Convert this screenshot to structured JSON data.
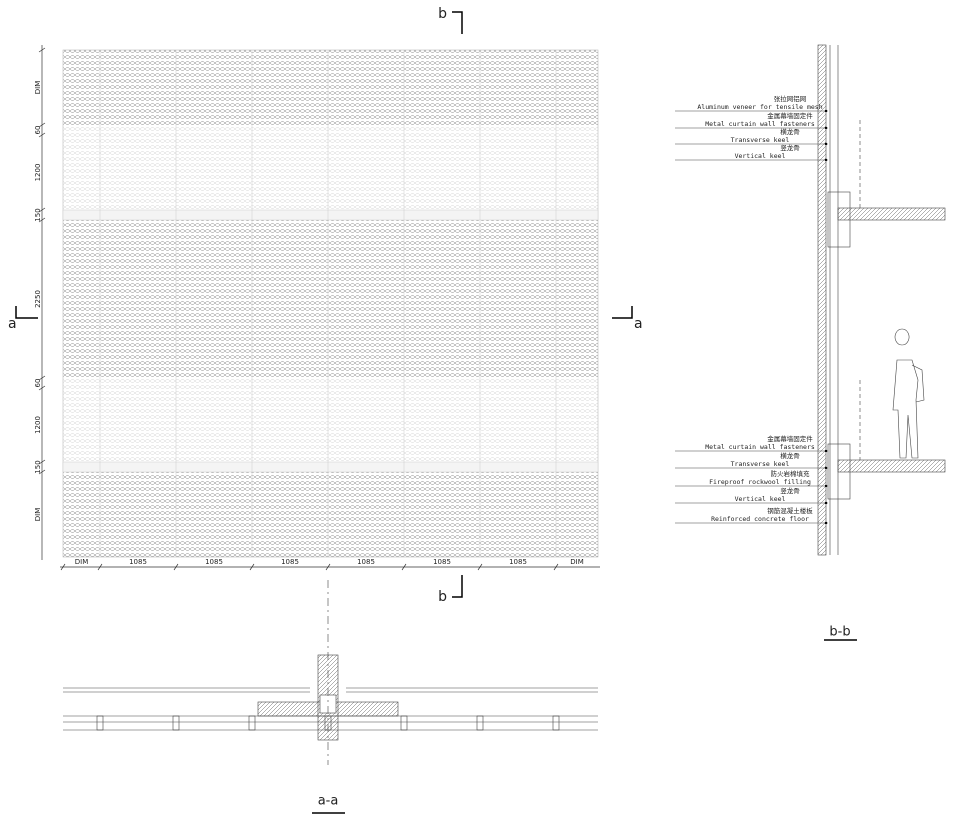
{
  "cut_marks": {
    "top": "b",
    "left": "a",
    "right": "a",
    "bottom": "b"
  },
  "vertical_dimensions": [
    "DIM",
    "60",
    "1200",
    "150",
    "2250",
    "60",
    "1200",
    "150",
    "DIM"
  ],
  "horizontal_dimensions": [
    "DIM",
    "1085",
    "1085",
    "1085",
    "1085",
    "1085",
    "1085",
    "DIM"
  ],
  "section_titles": {
    "plan": "a-a",
    "section": "b-b"
  },
  "annotations_upper": [
    {
      "zh": "张拉网铝网",
      "en": "Aluminum veneer for tensile mesh"
    },
    {
      "zh": "金属幕墙固定件",
      "en": "Metal curtain wall fasteners"
    },
    {
      "zh": "横龙骨",
      "en": "Transverse keel"
    },
    {
      "zh": "竖龙骨",
      "en": "Vertical keel"
    }
  ],
  "annotations_lower": [
    {
      "zh": "金属幕墙固定件",
      "en": "Metal curtain wall fasteners"
    },
    {
      "zh": "横龙骨",
      "en": "Transverse keel"
    },
    {
      "zh": "防火岩棉填充",
      "en": "Fireproof rockwool filling"
    },
    {
      "zh": "竖龙骨",
      "en": "Vertical keel"
    },
    {
      "zh": "钢筋混凝土楼板",
      "en": "Reinforced concrete floor"
    }
  ]
}
